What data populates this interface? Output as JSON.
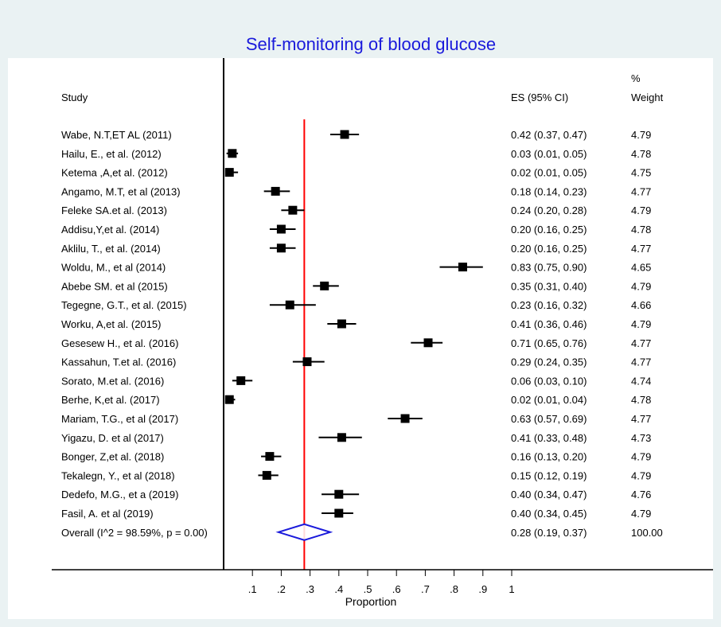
{
  "chart_data": {
    "type": "forest",
    "title": "Self-monitoring of blood glucose",
    "xlabel": "Proportion",
    "xlim": [
      0,
      1
    ],
    "x_ticks": [
      0.1,
      0.2,
      0.3,
      0.4,
      0.5,
      0.6,
      0.7,
      0.8,
      0.9,
      1.0
    ],
    "x_tick_labels": [
      ".1",
      ".2",
      ".3",
      ".4",
      ".5",
      ".6",
      ".7",
      ".8",
      ".9",
      "1"
    ],
    "reference_line": 0.28,
    "columns": {
      "study": "Study",
      "es": "ES (95% CI)",
      "weight_top": "%",
      "weight": "Weight"
    },
    "studies": [
      {
        "label": "Wabe, N.T,ET AL (2011)",
        "es": 0.42,
        "lo": 0.37,
        "hi": 0.47,
        "es_text": "0.42 (0.37, 0.47)",
        "weight": "4.79"
      },
      {
        "label": "Hailu, E., et al. (2012)",
        "es": 0.03,
        "lo": 0.01,
        "hi": 0.05,
        "es_text": "0.03 (0.01, 0.05)",
        "weight": "4.78"
      },
      {
        "label": "Ketema ,A,et al. (2012)",
        "es": 0.02,
        "lo": 0.01,
        "hi": 0.05,
        "es_text": "0.02 (0.01, 0.05)",
        "weight": "4.75"
      },
      {
        "label": "Angamo, M.T, et al (2013)",
        "es": 0.18,
        "lo": 0.14,
        "hi": 0.23,
        "es_text": "0.18 (0.14, 0.23)",
        "weight": "4.77"
      },
      {
        "label": "Feleke SA.et al. (2013)",
        "es": 0.24,
        "lo": 0.2,
        "hi": 0.28,
        "es_text": "0.24 (0.20, 0.28)",
        "weight": "4.79"
      },
      {
        "label": "Addisu,Y,et al. (2014)",
        "es": 0.2,
        "lo": 0.16,
        "hi": 0.25,
        "es_text": "0.20 (0.16, 0.25)",
        "weight": "4.78"
      },
      {
        "label": "Aklilu, T., et al. (2014)",
        "es": 0.2,
        "lo": 0.16,
        "hi": 0.25,
        "es_text": "0.20 (0.16, 0.25)",
        "weight": "4.77"
      },
      {
        "label": "Woldu, M., et al (2014)",
        "es": 0.83,
        "lo": 0.75,
        "hi": 0.9,
        "es_text": "0.83 (0.75, 0.90)",
        "weight": "4.65"
      },
      {
        "label": "Abebe SM. et al (2015)",
        "es": 0.35,
        "lo": 0.31,
        "hi": 0.4,
        "es_text": "0.35 (0.31, 0.40)",
        "weight": "4.79"
      },
      {
        "label": "Tegegne, G.T., et al. (2015)",
        "es": 0.23,
        "lo": 0.16,
        "hi": 0.32,
        "es_text": "0.23 (0.16, 0.32)",
        "weight": "4.66"
      },
      {
        "label": "Worku, A,et al. (2015)",
        "es": 0.41,
        "lo": 0.36,
        "hi": 0.46,
        "es_text": "0.41 (0.36, 0.46)",
        "weight": "4.79"
      },
      {
        "label": "Gesesew H., et al. (2016)",
        "es": 0.71,
        "lo": 0.65,
        "hi": 0.76,
        "es_text": "0.71 (0.65, 0.76)",
        "weight": "4.77"
      },
      {
        "label": "Kassahun, T.et al. (2016)",
        "es": 0.29,
        "lo": 0.24,
        "hi": 0.35,
        "es_text": "0.29 (0.24, 0.35)",
        "weight": "4.77"
      },
      {
        "label": "Sorato, M.et al. (2016)",
        "es": 0.06,
        "lo": 0.03,
        "hi": 0.1,
        "es_text": "0.06 (0.03, 0.10)",
        "weight": "4.74"
      },
      {
        "label": "Berhe, K,et al. (2017)",
        "es": 0.02,
        "lo": 0.01,
        "hi": 0.04,
        "es_text": "0.02 (0.01, 0.04)",
        "weight": "4.78"
      },
      {
        "label": "Mariam, T.G., et al (2017)",
        "es": 0.63,
        "lo": 0.57,
        "hi": 0.69,
        "es_text": "0.63 (0.57, 0.69)",
        "weight": "4.77"
      },
      {
        "label": "Yigazu, D. et al (2017)",
        "es": 0.41,
        "lo": 0.33,
        "hi": 0.48,
        "es_text": "0.41 (0.33, 0.48)",
        "weight": "4.73"
      },
      {
        "label": "Bonger, Z,et al. (2018)",
        "es": 0.16,
        "lo": 0.13,
        "hi": 0.2,
        "es_text": "0.16 (0.13, 0.20)",
        "weight": "4.79"
      },
      {
        "label": "Tekalegn, Y., et al (2018)",
        "es": 0.15,
        "lo": 0.12,
        "hi": 0.19,
        "es_text": "0.15 (0.12, 0.19)",
        "weight": "4.79"
      },
      {
        "label": "Dedefo, M.G., et a (2019)",
        "es": 0.4,
        "lo": 0.34,
        "hi": 0.47,
        "es_text": "0.40 (0.34, 0.47)",
        "weight": "4.76"
      },
      {
        "label": "Fasil, A. et al (2019)",
        "es": 0.4,
        "lo": 0.34,
        "hi": 0.45,
        "es_text": "0.40 (0.34, 0.45)",
        "weight": "4.79"
      }
    ],
    "overall": {
      "label": "Overall  (I^2 = 98.59%, p = 0.00)",
      "es": 0.28,
      "lo": 0.19,
      "hi": 0.37,
      "es_text": "0.28 (0.19, 0.37)",
      "weight": "100.00"
    },
    "colors": {
      "outer_background": "#eaf2f3",
      "plot_background": "#ffffff",
      "title": "#1a1adb",
      "reference_line": "#ff0000",
      "overall_diamond": "#1a1adb",
      "markers": "#000000"
    }
  }
}
